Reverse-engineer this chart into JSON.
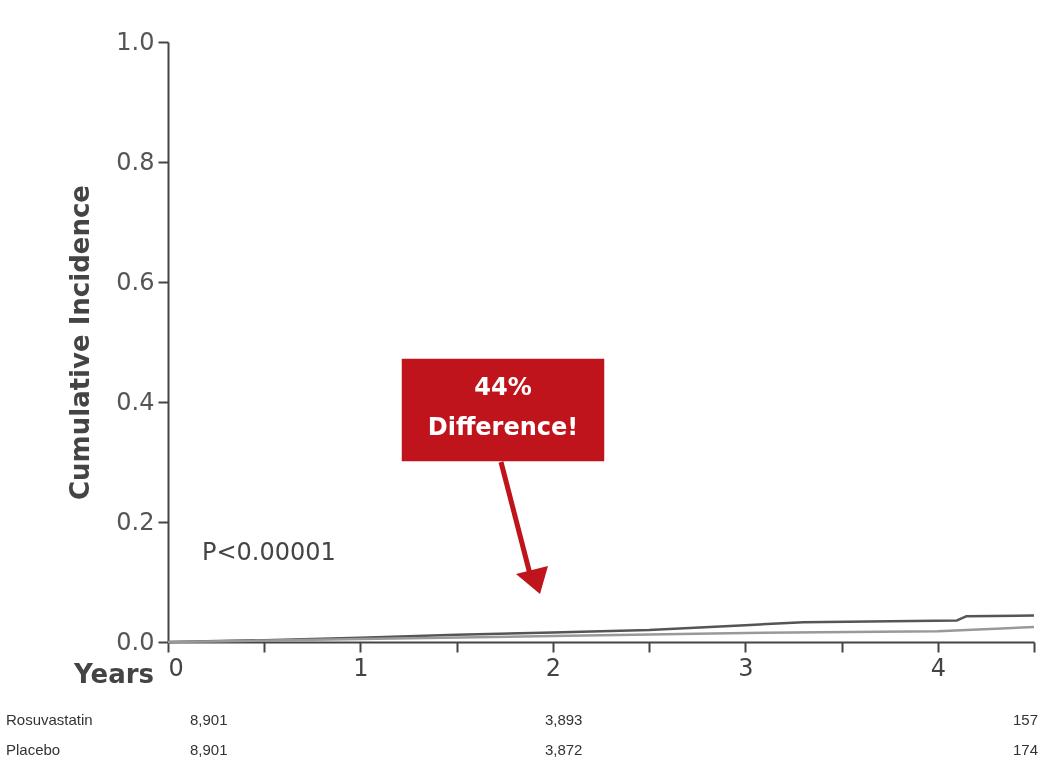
{
  "chart_data": {
    "type": "line",
    "ylabel": "Cumulative Incidence",
    "xlabel": "Years",
    "xlim": [
      0,
      4.5
    ],
    "ylim": [
      0,
      1
    ],
    "xticks": [
      0,
      {
        "value": 0.5,
        "label": null
      },
      1,
      {
        "value": 1.5,
        "label": null
      },
      2,
      {
        "value": 2.5,
        "label": null
      },
      3,
      {
        "value": 3.5,
        "label": null
      },
      4,
      {
        "value": 4.5,
        "label": null
      }
    ],
    "yticks": [
      {
        "value": 0,
        "label": "0.0"
      },
      0.2,
      0.4,
      0.6,
      0.8,
      {
        "value": 1,
        "label": "1.0"
      }
    ],
    "grid": false,
    "legend": false,
    "series": [
      {
        "color": "#555555",
        "x": [
          0,
          0.5,
          1,
          1.5,
          2,
          2.5,
          3,
          3.3,
          4.1,
          4.15,
          4.5
        ],
        "values": [
          0,
          0.003,
          0.007,
          0.012,
          0.016,
          0.02,
          0.028,
          0.033,
          0.036,
          0.043,
          0.044
        ]
      },
      {
        "color": "#999999",
        "x": [
          0,
          1,
          2,
          3,
          4,
          4.3,
          4.5
        ],
        "values": [
          0,
          0.005,
          0.01,
          0.015,
          0.018,
          0.022,
          0.025
        ]
      }
    ],
    "annotations": [
      "P<0.00001",
      "44% Difference!",
      "Rosuvastatin",
      "8,901",
      "3,893",
      "157",
      "Placebo",
      "8,901",
      "3,872",
      "174"
    ]
  }
}
